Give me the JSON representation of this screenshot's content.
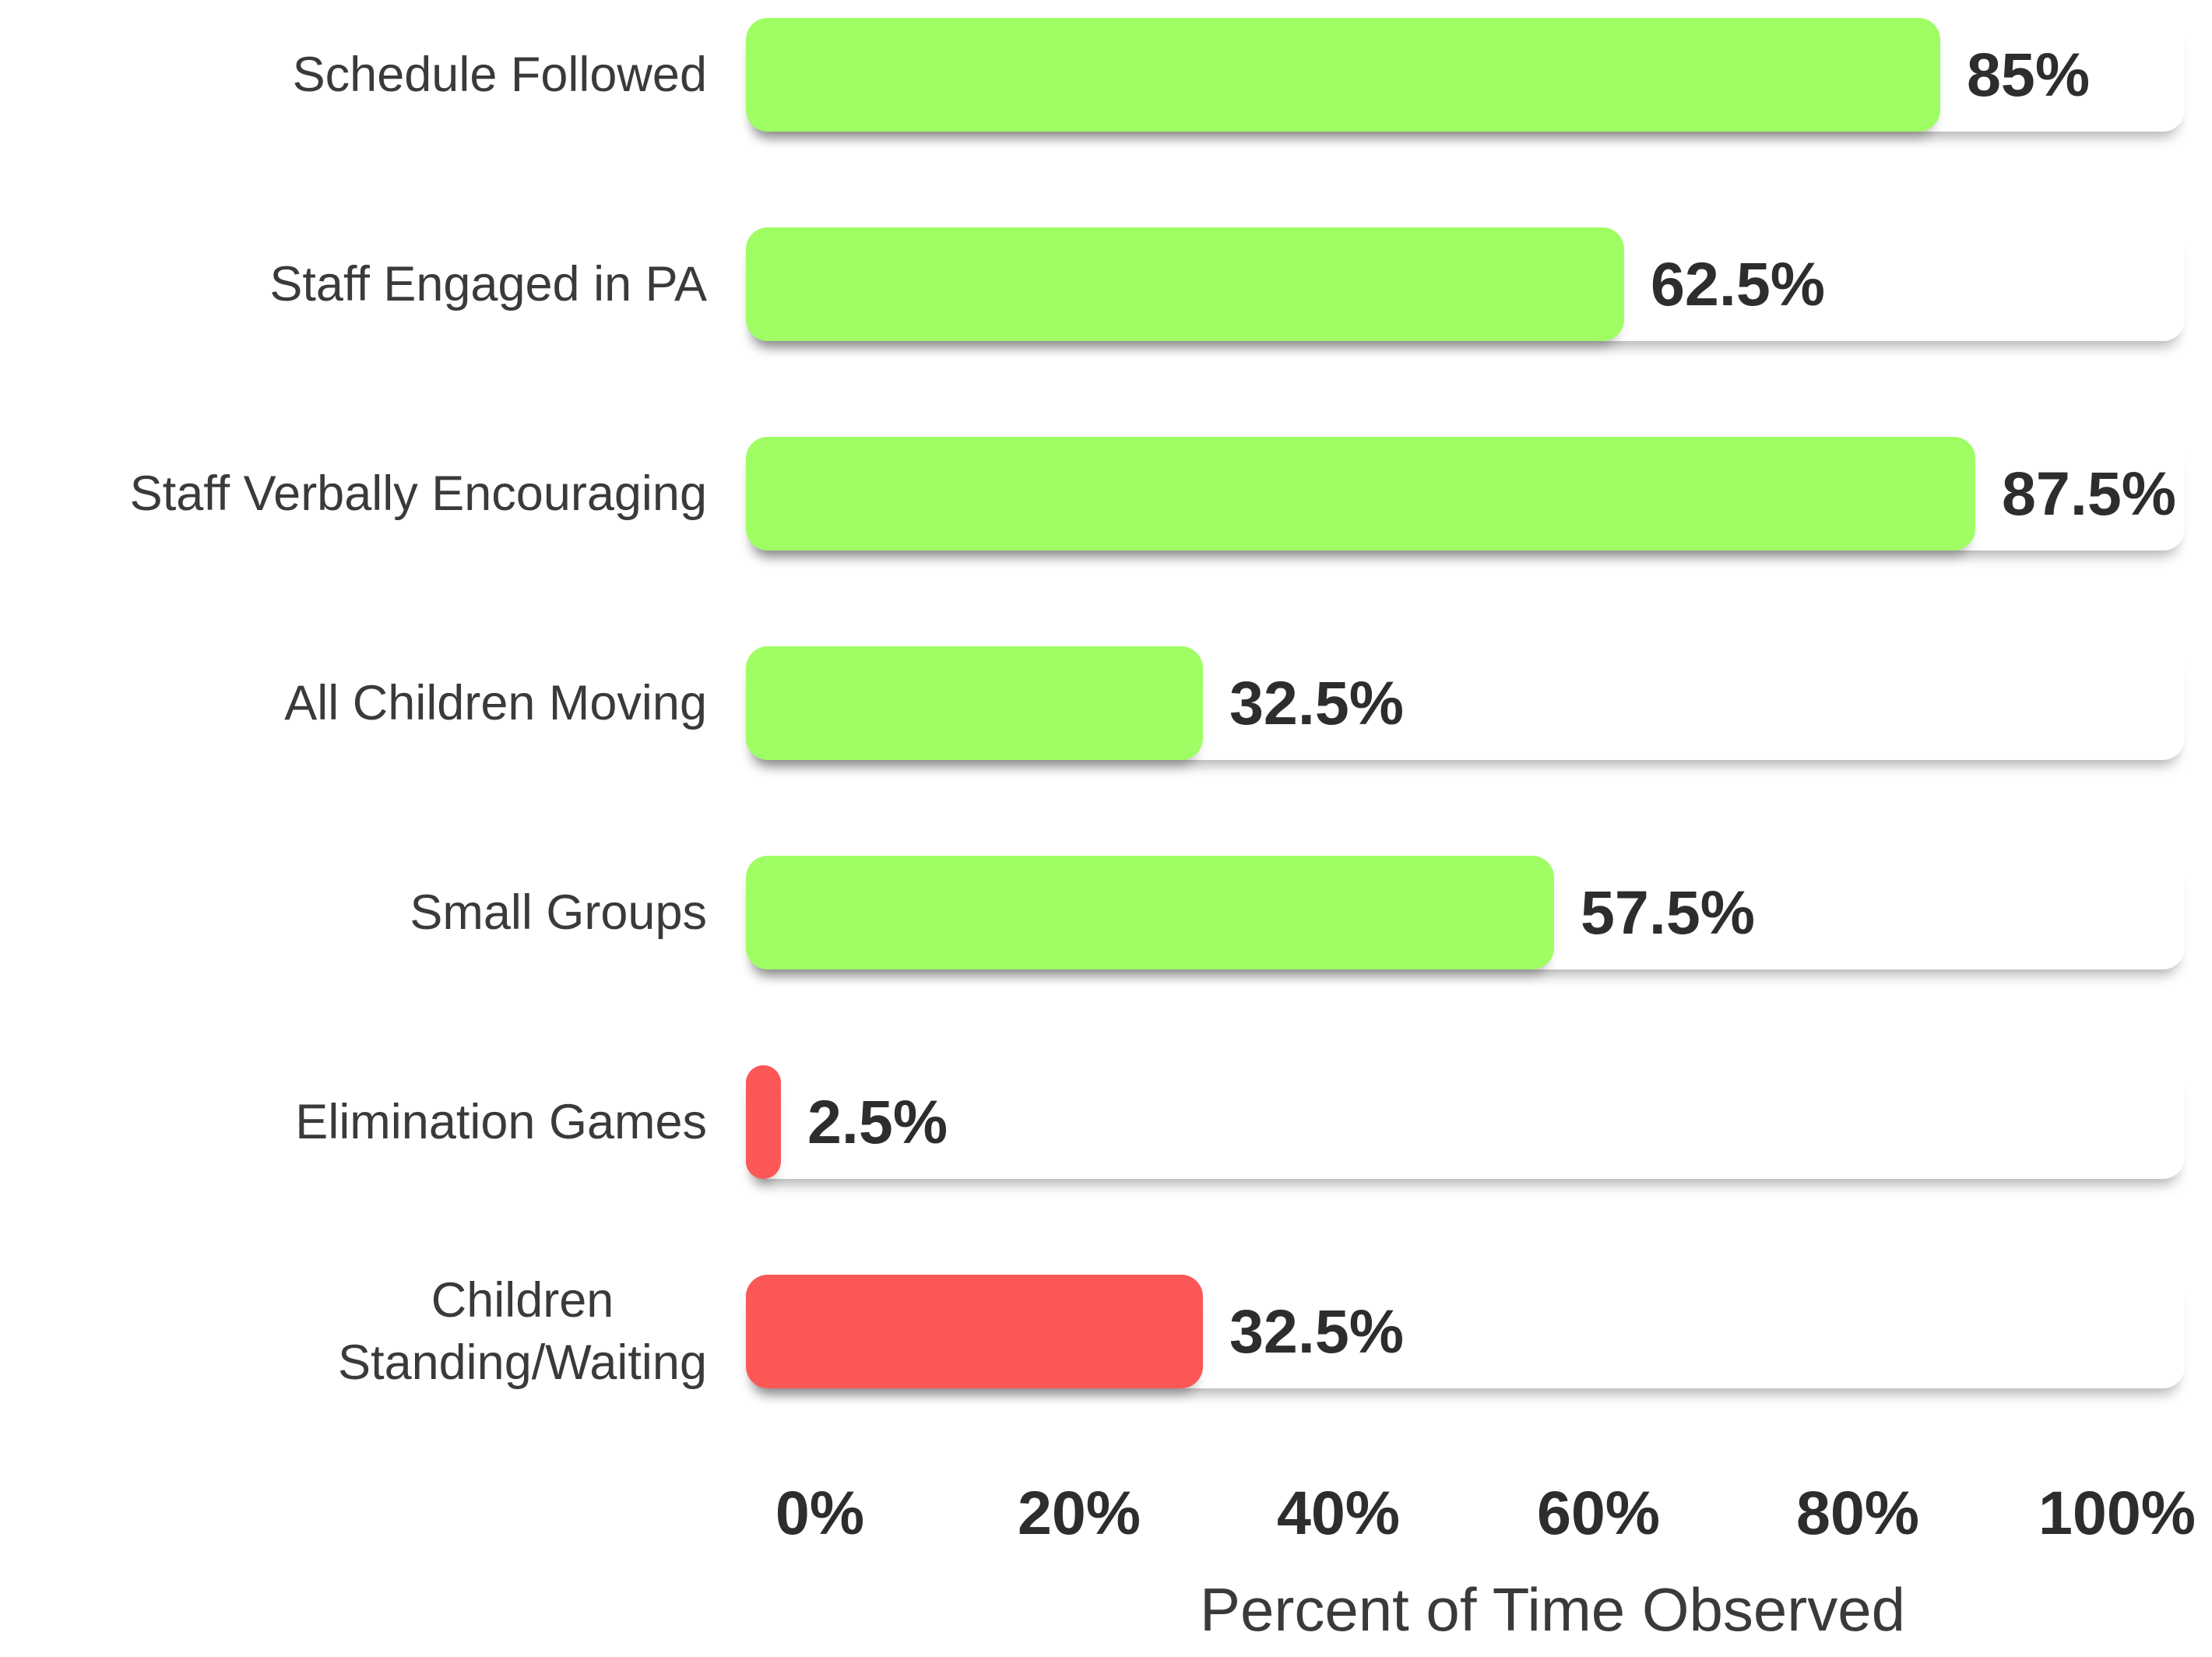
{
  "chart_data": {
    "type": "bar",
    "orientation": "horizontal",
    "title": "",
    "categories": [
      "Schedule Followed",
      "Staff Engaged in PA",
      "Staff Verbally Encouraging",
      "All Children Moving",
      "Small Groups",
      "Elimination Games",
      "Children Standing/Waiting"
    ],
    "category_display": [
      "Schedule Followed",
      "Staff Engaged in PA",
      "Staff Verbally Encouraging",
      "All Children Moving",
      "Small Groups",
      "Elimination Games",
      "Children\nStanding/Waiting"
    ],
    "values": [
      85,
      62.5,
      87.5,
      32.5,
      57.5,
      2.5,
      32.5
    ],
    "value_labels": [
      "85%",
      "62.5%",
      "87.5%",
      "32.5%",
      "57.5%",
      "2.5%",
      "32.5%"
    ],
    "bar_color_keys": [
      "green",
      "green",
      "green",
      "green",
      "green",
      "red",
      "red"
    ],
    "colors": {
      "green": "#9EFE63",
      "red": "#FC5757"
    },
    "xlabel": "Percent of Time Observed",
    "xlim": [
      0,
      100
    ],
    "x_ticks": [
      {
        "value": 0,
        "label": "0%"
      },
      {
        "value": 20,
        "label": "20%"
      },
      {
        "value": 40,
        "label": "40%"
      },
      {
        "value": 60,
        "label": "60%"
      },
      {
        "value": 80,
        "label": "80%"
      },
      {
        "value": 100,
        "label": "100%"
      }
    ],
    "grid": "off",
    "legend": "none"
  },
  "text_colors": {
    "labels": "#3a3a3a",
    "values": "#2d2d2d"
  }
}
